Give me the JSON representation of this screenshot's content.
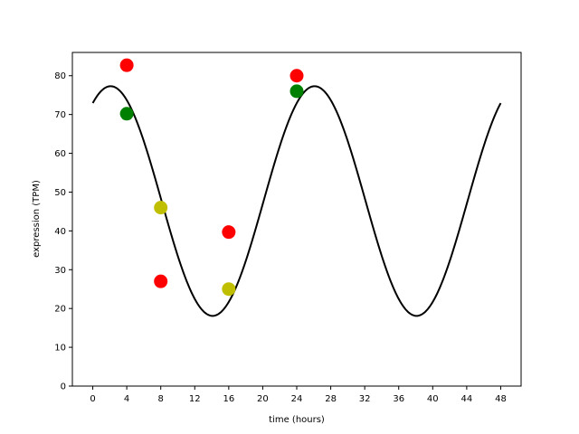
{
  "chart_data": {
    "type": "scatter",
    "xlabel": "time (hours)",
    "ylabel": "expression (TPM)",
    "xlim": [
      -2.4,
      50.4
    ],
    "ylim": [
      0,
      86
    ],
    "xticks": [
      0,
      4,
      8,
      12,
      16,
      20,
      24,
      28,
      32,
      36,
      40,
      44,
      48
    ],
    "yticks": [
      0,
      10,
      20,
      30,
      40,
      50,
      60,
      70,
      80
    ],
    "grid": false,
    "legend": "none",
    "curve": {
      "type": "line",
      "color": "#000000",
      "model": "cosine",
      "mesor": 47.7,
      "amplitude": 29.6,
      "period_hours": 24,
      "peak_hour": 2.1,
      "x_range": [
        0,
        48
      ]
    },
    "points": [
      {
        "x": 4,
        "y": 82.7,
        "color": "#ff0000"
      },
      {
        "x": 4,
        "y": 70.2,
        "color": "#008000"
      },
      {
        "x": 8,
        "y": 46.0,
        "color": "#bfbf00"
      },
      {
        "x": 8,
        "y": 27.0,
        "color": "#ff0000"
      },
      {
        "x": 16,
        "y": 39.7,
        "color": "#ff0000"
      },
      {
        "x": 16,
        "y": 25.0,
        "color": "#bfbf00"
      },
      {
        "x": 24,
        "y": 80.0,
        "color": "#ff0000"
      },
      {
        "x": 24,
        "y": 76.0,
        "color": "#008000"
      }
    ]
  }
}
